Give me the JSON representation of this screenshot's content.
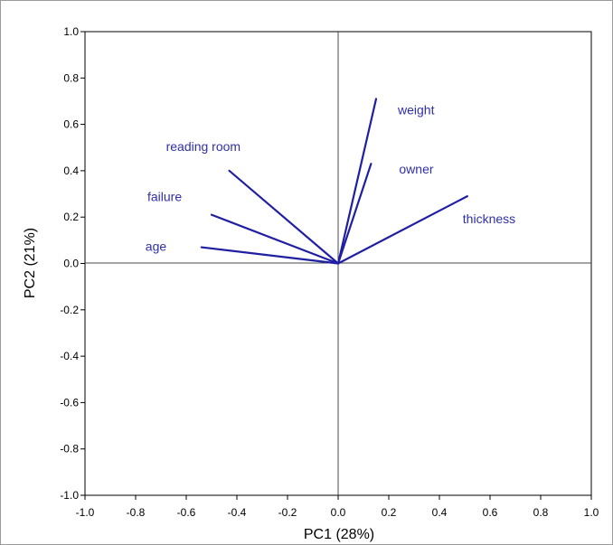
{
  "chart_data": {
    "type": "line",
    "chart_subtype": "pca-loadings-biplot",
    "xlabel": "PC1 (28%)",
    "ylabel": "PC2 (21%)",
    "xlim": [
      -1.0,
      1.0
    ],
    "ylim": [
      -1.0,
      1.0
    ],
    "x_ticks": [
      "-1.0",
      "-0.8",
      "-0.6",
      "-0.4",
      "-0.2",
      "0.0",
      "0.2",
      "0.4",
      "0.6",
      "0.8",
      "1.0"
    ],
    "y_ticks": [
      "1.0",
      "0.8",
      "0.6",
      "0.4",
      "0.2",
      "0.0",
      "-0.2",
      "-0.4",
      "-0.6",
      "-0.8",
      "-1.0"
    ],
    "x_tick_values": [
      -1.0,
      -0.8,
      -0.6,
      -0.4,
      -0.2,
      0.0,
      0.2,
      0.4,
      0.6,
      0.8,
      1.0
    ],
    "y_tick_values": [
      1.0,
      0.8,
      0.6,
      0.4,
      0.2,
      0.0,
      -0.2,
      -0.4,
      -0.6,
      -0.8,
      -1.0
    ],
    "grid": false,
    "zero_lines": true,
    "vector_color": "#1f1fa3",
    "label_color": "#2f2fa8",
    "vectors": [
      {
        "label": "weight",
        "x": 0.15,
        "y": 0.71
      },
      {
        "label": "owner",
        "x": 0.13,
        "y": 0.43
      },
      {
        "label": "thickness",
        "x": 0.51,
        "y": 0.29
      },
      {
        "label": "reading room",
        "x": -0.43,
        "y": 0.4
      },
      {
        "label": "failure",
        "x": -0.5,
        "y": 0.21
      },
      {
        "label": "age",
        "x": -0.54,
        "y": 0.07
      }
    ]
  }
}
